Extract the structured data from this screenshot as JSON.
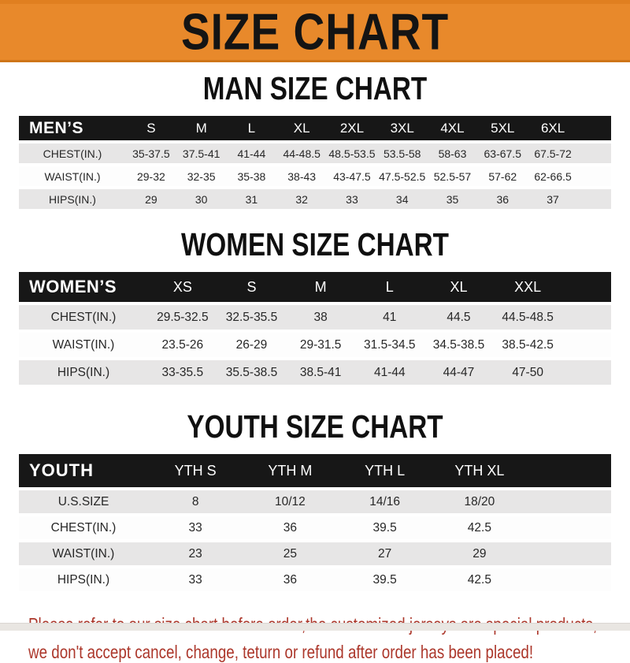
{
  "banner": {
    "title": "SIZE CHART"
  },
  "sections": [
    {
      "id": "man",
      "title": "MAN SIZE CHART",
      "table": {
        "header": [
          "MEN’S",
          "S",
          "M",
          "L",
          "XL",
          "2XL",
          "3XL",
          "4XL",
          "5XL",
          "6XL"
        ],
        "rows": [
          [
            "CHEST(IN.)",
            "35-37.5",
            "37.5-41",
            "41-44",
            "44-48.5",
            "48.5-53.5",
            "53.5-58",
            "58-63",
            "63-67.5",
            "67.5-72"
          ],
          [
            "WAIST(IN.)",
            "29-32",
            "32-35",
            "35-38",
            "38-43",
            "43-47.5",
            "47.5-52.5",
            "52.5-57",
            "57-62",
            "62-66.5"
          ],
          [
            "HIPS(IN.)",
            "29",
            "30",
            "31",
            "32",
            "33",
            "34",
            "35",
            "36",
            "37"
          ]
        ]
      }
    },
    {
      "id": "women",
      "title": "WOMEN SIZE CHART",
      "table": {
        "header": [
          "WOMEN’S",
          "XS",
          "S",
          "M",
          "L",
          "XL",
          "XXL"
        ],
        "rows": [
          [
            "CHEST(IN.)",
            "29.5-32.5",
            "32.5-35.5",
            "38",
            "41",
            "44.5",
            "44.5-48.5"
          ],
          [
            "WAIST(IN.)",
            "23.5-26",
            "26-29",
            "29-31.5",
            "31.5-34.5",
            "34.5-38.5",
            "38.5-42.5"
          ],
          [
            "HIPS(IN.)",
            "33-35.5",
            "35.5-38.5",
            "38.5-41",
            "41-44",
            "44-47",
            "47-50"
          ]
        ]
      }
    },
    {
      "id": "youth",
      "title": "YOUTH SIZE CHART",
      "table": {
        "header": [
          "YOUTH",
          "YTH S",
          "YTH M",
          "YTH L",
          "YTH XL"
        ],
        "rows": [
          [
            "U.S.SIZE",
            "8",
            "10/12",
            "14/16",
            "18/20"
          ],
          [
            "CHEST(IN.)",
            "33",
            "36",
            "39.5",
            "42.5"
          ],
          [
            "WAIST(IN.)",
            "23",
            "25",
            "27",
            "29"
          ],
          [
            "HIPS(IN.)",
            "33",
            "36",
            "39.5",
            "42.5"
          ]
        ]
      }
    }
  ],
  "footer": {
    "line1": "Please refer to our size chart before order,the customized jerseys are special products,",
    "line2": "we don't accept cancel, change, teturn or refund after order has been placed!"
  },
  "colors": {
    "banner_orange": "#E8892B",
    "bar_black": "#171717",
    "row_gray": "#E7E6E6",
    "notice_red": "#AC372B"
  }
}
